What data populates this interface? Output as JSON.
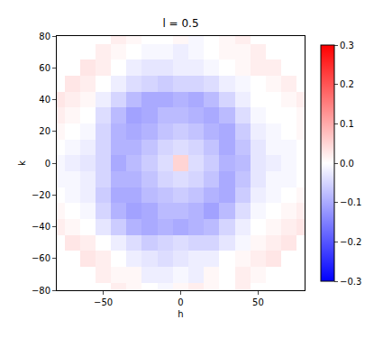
{
  "chart_data": {
    "type": "heatmap",
    "title": "l = 0.5",
    "x_label": "h",
    "y_label": "k",
    "x": [
      -80,
      -70,
      -60,
      -50,
      -40,
      -30,
      -20,
      -10,
      0,
      10,
      20,
      30,
      40,
      50,
      60,
      70,
      80
    ],
    "y": [
      -80,
      -70,
      -60,
      -50,
      -40,
      -30,
      -20,
      -10,
      0,
      10,
      20,
      30,
      40,
      50,
      60,
      70,
      80
    ],
    "z": [
      [
        null,
        null,
        null,
        null,
        0.02,
        0.01,
        0.0,
        -0.01,
        0.01,
        0.02,
        0.01,
        0.0,
        0.02,
        null,
        null,
        null,
        null
      ],
      [
        null,
        null,
        null,
        0.02,
        0.01,
        0.01,
        -0.02,
        -0.02,
        -0.01,
        -0.02,
        0.01,
        0.0,
        0.02,
        0.01,
        null,
        null,
        null
      ],
      [
        null,
        null,
        0.03,
        0.02,
        0.0,
        -0.02,
        -0.03,
        -0.04,
        -0.03,
        -0.02,
        -0.02,
        0.0,
        0.01,
        0.02,
        0.03,
        null,
        null
      ],
      [
        null,
        0.03,
        0.02,
        0.0,
        -0.02,
        -0.04,
        -0.06,
        -0.05,
        -0.04,
        -0.05,
        -0.05,
        -0.03,
        -0.01,
        0.01,
        0.02,
        0.03,
        null
      ],
      [
        0.02,
        0.01,
        0.0,
        -0.03,
        -0.06,
        -0.09,
        -0.1,
        -0.09,
        -0.1,
        -0.09,
        -0.08,
        -0.05,
        -0.02,
        0.0,
        0.01,
        0.02,
        0.03
      ],
      [
        0.01,
        0.0,
        -0.01,
        -0.05,
        -0.09,
        -0.11,
        -0.1,
        -0.08,
        -0.08,
        -0.09,
        -0.11,
        -0.08,
        -0.04,
        -0.01,
        0.0,
        0.01,
        0.02
      ],
      [
        0.0,
        -0.01,
        -0.02,
        -0.06,
        -0.1,
        -0.1,
        -0.08,
        -0.07,
        -0.06,
        -0.07,
        -0.09,
        -0.1,
        -0.06,
        -0.02,
        -0.01,
        0.0,
        0.01
      ],
      [
        -0.01,
        -0.01,
        -0.02,
        -0.05,
        -0.09,
        -0.09,
        -0.07,
        -0.05,
        -0.04,
        -0.05,
        -0.07,
        -0.1,
        -0.07,
        -0.03,
        -0.01,
        -0.01,
        0.0
      ],
      [
        -0.01,
        -0.02,
        -0.03,
        -0.05,
        -0.1,
        -0.08,
        -0.06,
        -0.04,
        0.05,
        -0.04,
        -0.06,
        -0.09,
        -0.08,
        -0.03,
        -0.02,
        -0.01,
        0.0
      ],
      [
        0.0,
        -0.01,
        -0.02,
        -0.05,
        -0.09,
        -0.09,
        -0.07,
        -0.05,
        -0.04,
        -0.05,
        -0.07,
        -0.1,
        -0.07,
        -0.03,
        -0.01,
        -0.01,
        0.0
      ],
      [
        0.01,
        0.0,
        -0.01,
        -0.05,
        -0.09,
        -0.1,
        -0.09,
        -0.07,
        -0.06,
        -0.07,
        -0.09,
        -0.1,
        -0.06,
        -0.02,
        -0.01,
        0.0,
        0.01
      ],
      [
        0.02,
        0.01,
        0.0,
        -0.04,
        -0.08,
        -0.11,
        -0.1,
        -0.08,
        -0.08,
        -0.09,
        -0.1,
        -0.08,
        -0.04,
        -0.01,
        0.0,
        0.0,
        0.01
      ],
      [
        0.03,
        0.02,
        0.01,
        -0.02,
        -0.05,
        -0.08,
        -0.1,
        -0.1,
        -0.09,
        -0.1,
        -0.08,
        -0.05,
        -0.02,
        0.0,
        0.0,
        0.01,
        0.02
      ],
      [
        null,
        0.03,
        0.02,
        0.0,
        -0.02,
        -0.04,
        -0.05,
        -0.06,
        -0.05,
        -0.05,
        -0.04,
        -0.02,
        -0.01,
        0.0,
        0.01,
        0.02,
        null
      ],
      [
        null,
        null,
        0.03,
        0.02,
        0.0,
        -0.02,
        -0.03,
        -0.03,
        -0.02,
        -0.02,
        -0.01,
        0.0,
        0.01,
        0.02,
        0.02,
        null,
        null
      ],
      [
        null,
        null,
        null,
        0.02,
        0.01,
        0.0,
        -0.01,
        -0.01,
        -0.02,
        -0.01,
        0.0,
        0.01,
        0.01,
        0.02,
        null,
        null,
        null
      ],
      [
        null,
        null,
        null,
        null,
        0.02,
        0.01,
        0.0,
        0.0,
        0.01,
        -0.01,
        0.0,
        0.01,
        0.02,
        null,
        null,
        null,
        null
      ]
    ],
    "xlim": [
      -80,
      80
    ],
    "ylim": [
      -80,
      80
    ],
    "xticks": [
      {
        "value": -50,
        "label": "−50"
      },
      0,
      50
    ],
    "yticks": [
      {
        "value": -80,
        "label": "−80"
      },
      {
        "value": -60,
        "label": "−60"
      },
      {
        "value": -40,
        "label": "−40"
      },
      {
        "value": -20,
        "label": "−20"
      },
      0,
      20,
      40,
      60,
      80
    ],
    "colorbar": {
      "range": [
        -0.3,
        0.3
      ],
      "ticks": [
        {
          "value": -0.3,
          "label": "−0.3"
        },
        {
          "value": -0.2,
          "label": "−0.2"
        },
        {
          "value": -0.1,
          "label": "−0.1"
        },
        {
          "value": 0,
          "label": "0.0"
        },
        0.1,
        0.2,
        0.3
      ]
    }
  }
}
